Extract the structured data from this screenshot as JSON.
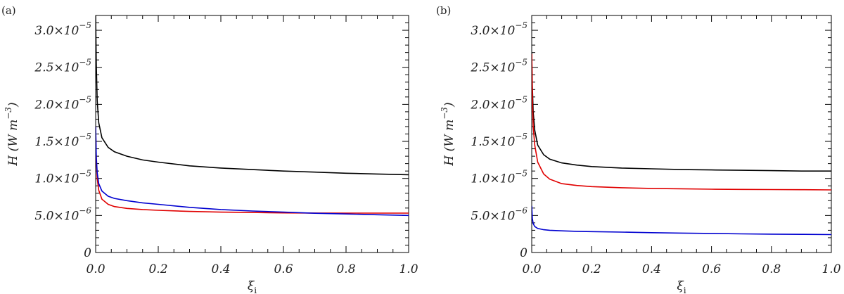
{
  "chart_data": [
    {
      "type": "line",
      "panel_label": "(a)",
      "xlabel": "ξ",
      "xlabel_sub": "i",
      "ylabel": "H  (W m",
      "ylabel_sup": "−3",
      "ylabel_close": ")",
      "xlim": [
        0,
        1
      ],
      "ylim": [
        0,
        3.2e-05
      ],
      "xticks": [
        {
          "value": 0.0,
          "label": "0.0"
        },
        {
          "value": 0.2,
          "label": "0.2"
        },
        {
          "value": 0.4,
          "label": "0.4"
        },
        {
          "value": 0.6,
          "label": "0.6"
        },
        {
          "value": 0.8,
          "label": "0.8"
        },
        {
          "value": 1.0,
          "label": "1.0"
        }
      ],
      "yticks": [
        {
          "value": 0,
          "mantissa": "0",
          "exponent": ""
        },
        {
          "value": 5e-06,
          "mantissa": "5.0×10",
          "exponent": "−6"
        },
        {
          "value": 1e-05,
          "mantissa": "1.0×10",
          "exponent": "−5"
        },
        {
          "value": 1.5e-05,
          "mantissa": "1.5×10",
          "exponent": "−5"
        },
        {
          "value": 2e-05,
          "mantissa": "2.0×10",
          "exponent": "−5"
        },
        {
          "value": 2.5e-05,
          "mantissa": "2.5×10",
          "exponent": "−5"
        },
        {
          "value": 3e-05,
          "mantissa": "3.0×10",
          "exponent": "−5"
        }
      ],
      "series": [
        {
          "name": "black",
          "color": "#000000",
          "x": [
            0.0,
            0.002,
            0.005,
            0.01,
            0.02,
            0.04,
            0.06,
            0.1,
            0.15,
            0.2,
            0.3,
            0.4,
            0.5,
            0.6,
            0.7,
            0.8,
            0.9,
            1.0
          ],
          "y": [
            3.2e-05,
            2.55e-05,
            2.05e-05,
            1.75e-05,
            1.55e-05,
            1.42e-05,
            1.36e-05,
            1.3e-05,
            1.25e-05,
            1.22e-05,
            1.17e-05,
            1.14e-05,
            1.12e-05,
            1.1e-05,
            1.085e-05,
            1.07e-05,
            1.06e-05,
            1.05e-05
          ]
        },
        {
          "name": "red",
          "color": "#e00000",
          "x": [
            0.0,
            0.002,
            0.005,
            0.01,
            0.02,
            0.04,
            0.06,
            0.1,
            0.15,
            0.2,
            0.3,
            0.4,
            0.5,
            0.6,
            0.7,
            0.8,
            0.9,
            1.0
          ],
          "y": [
            1.7e-05,
            1.25e-05,
            1e-05,
            8.4e-06,
            7.2e-06,
            6.5e-06,
            6.2e-06,
            5.95e-06,
            5.8e-06,
            5.7e-06,
            5.55e-06,
            5.45e-06,
            5.4e-06,
            5.35e-06,
            5.33e-06,
            5.32e-06,
            5.32e-06,
            5.32e-06
          ]
        },
        {
          "name": "blue",
          "color": "#0000d0",
          "x": [
            0.0,
            0.002,
            0.005,
            0.01,
            0.02,
            0.04,
            0.06,
            0.1,
            0.15,
            0.2,
            0.3,
            0.4,
            0.5,
            0.6,
            0.7,
            0.8,
            0.9,
            1.0
          ],
          "y": [
            1.7e-05,
            1.3e-05,
            1.08e-05,
            9.3e-06,
            8.3e-06,
            7.6e-06,
            7.3e-06,
            7e-06,
            6.7e-06,
            6.5e-06,
            6.1e-06,
            5.8e-06,
            5.6e-06,
            5.45e-06,
            5.3e-06,
            5.2e-06,
            5.1e-06,
            5e-06
          ]
        }
      ]
    },
    {
      "type": "line",
      "panel_label": "(b)",
      "xlabel": "ξ",
      "xlabel_sub": "i",
      "ylabel": "H  (W m",
      "ylabel_sup": "−3",
      "ylabel_close": ")",
      "xlim": [
        0,
        1
      ],
      "ylim": [
        0,
        3.2e-05
      ],
      "xticks": [
        {
          "value": 0.0,
          "label": "0.0"
        },
        {
          "value": 0.2,
          "label": "0.2"
        },
        {
          "value": 0.4,
          "label": "0.4"
        },
        {
          "value": 0.6,
          "label": "0.6"
        },
        {
          "value": 0.8,
          "label": "0.8"
        },
        {
          "value": 1.0,
          "label": "1.0"
        }
      ],
      "yticks": [
        {
          "value": 0,
          "mantissa": "0",
          "exponent": ""
        },
        {
          "value": 5e-06,
          "mantissa": "5.0×10",
          "exponent": "−6"
        },
        {
          "value": 1e-05,
          "mantissa": "1.0×10",
          "exponent": "−5"
        },
        {
          "value": 1.5e-05,
          "mantissa": "1.5×10",
          "exponent": "−5"
        },
        {
          "value": 2e-05,
          "mantissa": "2.0×10",
          "exponent": "−5"
        },
        {
          "value": 2.5e-05,
          "mantissa": "2.5×10",
          "exponent": "−5"
        },
        {
          "value": 3e-05,
          "mantissa": "3.0×10",
          "exponent": "−5"
        }
      ],
      "series": [
        {
          "name": "black",
          "color": "#000000",
          "x": [
            0.0,
            0.002,
            0.005,
            0.01,
            0.02,
            0.04,
            0.06,
            0.1,
            0.15,
            0.2,
            0.3,
            0.4,
            0.5,
            0.6,
            0.7,
            0.8,
            0.9,
            1.0
          ],
          "y": [
            2.7e-05,
            2.25e-05,
            1.9e-05,
            1.65e-05,
            1.45e-05,
            1.32e-05,
            1.26e-05,
            1.21e-05,
            1.18e-05,
            1.16e-05,
            1.14e-05,
            1.13e-05,
            1.12e-05,
            1.115e-05,
            1.11e-05,
            1.105e-05,
            1.1e-05,
            1.1e-05
          ]
        },
        {
          "name": "red",
          "color": "#e00000",
          "x": [
            0.0,
            0.002,
            0.005,
            0.01,
            0.02,
            0.04,
            0.06,
            0.1,
            0.15,
            0.2,
            0.3,
            0.4,
            0.5,
            0.6,
            0.7,
            0.8,
            0.9,
            1.0
          ],
          "y": [
            2.68e-05,
            2.1e-05,
            1.7e-05,
            1.45e-05,
            1.22e-05,
            1.06e-05,
            9.9e-06,
            9.3e-06,
            9.05e-06,
            8.9e-06,
            8.75e-06,
            8.65e-06,
            8.6e-06,
            8.55e-06,
            8.52e-06,
            8.5e-06,
            8.48e-06,
            8.45e-06
          ]
        },
        {
          "name": "blue",
          "color": "#0000d0",
          "x": [
            0.0,
            0.002,
            0.005,
            0.01,
            0.02,
            0.04,
            0.06,
            0.1,
            0.15,
            0.2,
            0.3,
            0.4,
            0.5,
            0.6,
            0.7,
            0.8,
            0.9,
            1.0
          ],
          "y": [
            6.3e-06,
            4.6e-06,
            3.9e-06,
            3.5e-06,
            3.25e-06,
            3.08e-06,
            3e-06,
            2.92e-06,
            2.86e-06,
            2.82e-06,
            2.75e-06,
            2.68e-06,
            2.62e-06,
            2.57e-06,
            2.52e-06,
            2.48e-06,
            2.45e-06,
            2.42e-06
          ]
        }
      ]
    }
  ]
}
